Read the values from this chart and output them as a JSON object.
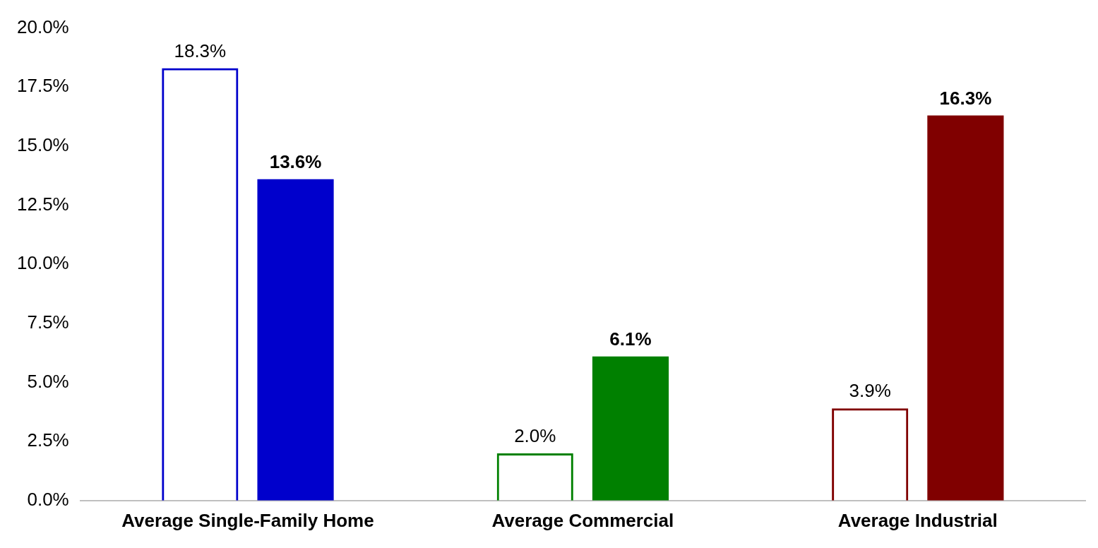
{
  "chart_data": {
    "type": "bar",
    "categories": [
      "Average Single-Family Home",
      "Average Commercial",
      "Average Industrial"
    ],
    "series": [
      {
        "colors": [
          "#0000cc",
          "#008000",
          "#800000"
        ],
        "values": [
          18.3,
          2.0,
          3.9
        ],
        "value_labels": [
          "18.3%",
          "2.0%",
          "3.9%"
        ]
      },
      {
        "colors": [
          "#0000cc",
          "#008000",
          "#800000"
        ],
        "values": [
          13.6,
          6.1,
          16.3
        ],
        "value_labels": [
          "13.6%",
          "6.1%",
          "16.3%"
        ]
      }
    ],
    "ylim": [
      0,
      20
    ],
    "yticks": [
      {
        "value": 0,
        "label": "0.0%"
      },
      {
        "value": 2.5,
        "label": "2.5%"
      },
      {
        "value": 5,
        "label": "5.0%"
      },
      {
        "value": 7.5,
        "label": "7.5%"
      },
      {
        "value": 10,
        "label": "10.0%"
      },
      {
        "value": 12.5,
        "label": "12.5%"
      },
      {
        "value": 15,
        "label": "15.0%"
      },
      {
        "value": 17.5,
        "label": "17.5%"
      },
      {
        "value": 20,
        "label": "20.0%"
      }
    ],
    "grid": false,
    "legend": false
  }
}
